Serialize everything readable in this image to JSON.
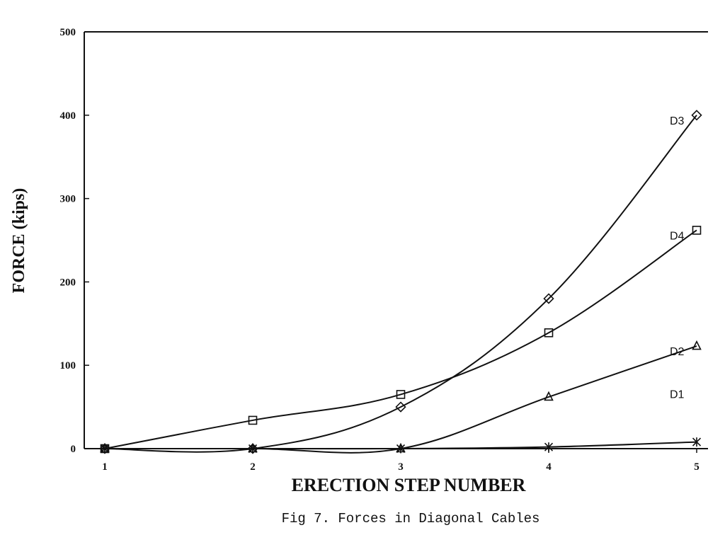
{
  "chart_data": {
    "type": "line",
    "title": "",
    "xlabel": "ERECTION STEP NUMBER",
    "ylabel": "FORCE (kips)",
    "x": [
      1,
      2,
      3,
      4,
      5
    ],
    "x_tick_labels": [
      "1",
      "2",
      "3",
      "4",
      "5"
    ],
    "y_ticks": [
      0,
      100,
      200,
      300,
      400,
      500
    ],
    "xlim": [
      1,
      5
    ],
    "ylim": [
      0,
      500
    ],
    "grid": false,
    "legend": "none",
    "line_color": "#111111",
    "series": [
      {
        "name": "D1",
        "marker": "star",
        "label_side": "below",
        "x": [
          1,
          2,
          3,
          4,
          5
        ],
        "values": [
          0,
          0,
          0,
          2,
          8
        ]
      },
      {
        "name": "D2",
        "marker": "triangle",
        "label_side": "above",
        "x": [
          1,
          2,
          3,
          4,
          5
        ],
        "values": [
          0,
          0,
          0,
          62,
          123
        ]
      },
      {
        "name": "D3",
        "marker": "diamond",
        "label_side": "above",
        "x": [
          1,
          2,
          3,
          4,
          5
        ],
        "values": [
          0,
          0,
          50,
          180,
          400
        ]
      },
      {
        "name": "D4",
        "marker": "square",
        "label_side": "above",
        "x": [
          1,
          2,
          3,
          4,
          5
        ],
        "values": [
          0,
          34,
          65,
          139,
          262
        ]
      }
    ]
  },
  "caption": "Fig 7. Forces in Diagonal Cables"
}
